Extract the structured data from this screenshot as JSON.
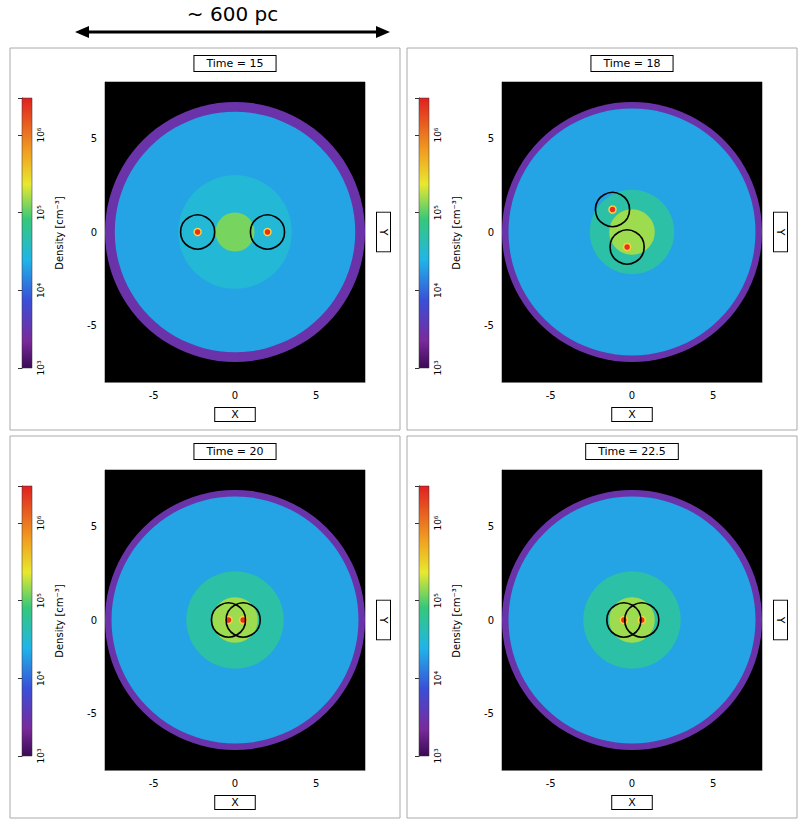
{
  "scale_bar": {
    "label": "~ 600 pc"
  },
  "chart_data": [
    {
      "type": "density_map",
      "title": "Time = 15",
      "x_label": "X",
      "y_label": "Y",
      "xlim": [
        -8,
        8
      ],
      "xticks": [
        -5,
        0,
        5
      ],
      "ylim": [
        -8,
        8
      ],
      "yticks": [
        -5,
        0,
        5
      ],
      "colorbar": {
        "label": "Density [cm⁻³]",
        "log": true,
        "range": [
          1000,
          3000000
        ],
        "ticks": [
          {
            "value": 1000,
            "label": "10³"
          },
          {
            "value": 10000,
            "label": "10⁴"
          },
          {
            "value": 100000,
            "label": "10⁵"
          },
          {
            "value": 1000000,
            "label": "10⁶"
          }
        ]
      },
      "regions": [
        {
          "radius": 8.0,
          "density": 3000
        },
        {
          "radius": 7.4,
          "density": 20000
        },
        {
          "radius": 3.5,
          "density": 30000
        },
        {
          "radius": 1.2,
          "density": 120000
        }
      ],
      "black_holes": {
        "x": [
          -2.3,
          2.0
        ],
        "y": [
          0,
          0
        ]
      },
      "circle_radius": 1.05
    },
    {
      "type": "density_map",
      "title": "Time = 18",
      "x_label": "X",
      "y_label": "Y",
      "xlim": [
        -8,
        8
      ],
      "xticks": [
        -5,
        0,
        5
      ],
      "ylim": [
        -8,
        8
      ],
      "yticks": [
        -5,
        0,
        5
      ],
      "colorbar": {
        "label": "Density [cm⁻³]",
        "log": true,
        "range": [
          1000,
          3000000
        ],
        "ticks": [
          {
            "value": 1000,
            "label": "10³"
          },
          {
            "value": 10000,
            "label": "10⁴"
          },
          {
            "value": 100000,
            "label": "10⁵"
          },
          {
            "value": 1000000,
            "label": "10⁶"
          }
        ]
      },
      "regions": [
        {
          "radius": 8.0,
          "density": 3000
        },
        {
          "radius": 7.6,
          "density": 20000
        },
        {
          "radius": 2.6,
          "density": 50000
        },
        {
          "radius": 1.4,
          "density": 150000
        }
      ],
      "black_holes": {
        "x": [
          -1.2,
          -0.3
        ],
        "y": [
          1.2,
          -0.8
        ]
      },
      "circle_radius": 1.05
    },
    {
      "type": "density_map",
      "title": "Time = 20",
      "x_label": "X",
      "y_label": "Y",
      "xlim": [
        -8,
        8
      ],
      "xticks": [
        -5,
        0,
        5
      ],
      "ylim": [
        -8,
        8
      ],
      "yticks": [
        -5,
        0,
        5
      ],
      "colorbar": {
        "label": "Density [cm⁻³]",
        "log": true,
        "range": [
          1000,
          3000000
        ],
        "ticks": [
          {
            "value": 1000,
            "label": "10³"
          },
          {
            "value": 10000,
            "label": "10⁴"
          },
          {
            "value": 100000,
            "label": "10⁵"
          },
          {
            "value": 1000000,
            "label": "10⁶"
          }
        ]
      },
      "regions": [
        {
          "radius": 8.0,
          "density": 3000
        },
        {
          "radius": 7.6,
          "density": 20000
        },
        {
          "radius": 3.0,
          "density": 50000
        },
        {
          "radius": 1.4,
          "density": 150000
        }
      ],
      "black_holes": {
        "x": [
          -0.4,
          0.5
        ],
        "y": [
          0,
          0
        ]
      },
      "circle_radius": 1.05
    },
    {
      "type": "density_map",
      "title": "Time = 22.5",
      "x_label": "X",
      "y_label": "Y",
      "xlim": [
        -8,
        8
      ],
      "xticks": [
        -5,
        0,
        5
      ],
      "ylim": [
        -8,
        8
      ],
      "yticks": [
        -5,
        0,
        5
      ],
      "colorbar": {
        "label": "Density [cm⁻³]",
        "log": true,
        "range": [
          1000,
          3000000
        ],
        "ticks": [
          {
            "value": 1000,
            "label": "10³"
          },
          {
            "value": 10000,
            "label": "10⁴"
          },
          {
            "value": 100000,
            "label": "10⁵"
          },
          {
            "value": 1000000,
            "label": "10⁶"
          }
        ]
      },
      "regions": [
        {
          "radius": 8.0,
          "density": 3000
        },
        {
          "radius": 7.6,
          "density": 20000
        },
        {
          "radius": 3.0,
          "density": 50000
        },
        {
          "radius": 1.4,
          "density": 150000
        }
      ],
      "black_holes": {
        "x": [
          -0.5,
          0.6
        ],
        "y": [
          0,
          0
        ]
      },
      "circle_radius": 1.05
    }
  ]
}
